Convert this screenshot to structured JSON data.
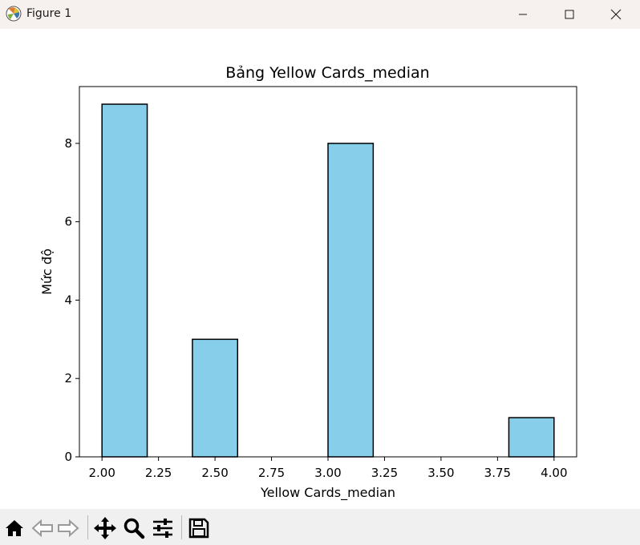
{
  "window": {
    "title": "Figure 1",
    "minimize_icon": "minimize-icon",
    "maximize_icon": "maximize-icon",
    "close_icon": "close-icon"
  },
  "toolbar": {
    "items": [
      "home-icon",
      "back-arrow-icon",
      "forward-arrow-icon",
      "pan-icon",
      "zoom-icon",
      "configure-subplots-icon",
      "save-icon"
    ]
  },
  "chart_data": {
    "type": "bar",
    "title": "Bảng Yellow Cards_median",
    "xlabel": "Yellow Cards_median",
    "ylabel": "Mức độ",
    "bin_edges": [
      2.0,
      2.2,
      2.4,
      2.6,
      2.8,
      3.0,
      3.2,
      3.4,
      3.6,
      3.8,
      4.0
    ],
    "values": [
      9,
      0,
      3,
      0,
      0,
      8,
      0,
      0,
      0,
      1
    ],
    "xlim": [
      1.9,
      4.1
    ],
    "ylim": [
      0,
      9.45
    ],
    "xticks": [
      2.0,
      2.25,
      2.5,
      2.75,
      3.0,
      3.25,
      3.5,
      3.75,
      4.0
    ],
    "xtick_labels": [
      "2.00",
      "2.25",
      "2.50",
      "2.75",
      "3.00",
      "3.25",
      "3.50",
      "3.75",
      "4.00"
    ],
    "yticks": [
      0,
      2,
      4,
      6,
      8
    ],
    "ytick_labels": [
      "0",
      "2",
      "4",
      "6",
      "8"
    ],
    "bar_color": "#87ceeb",
    "edge_color": "#000000",
    "grid": false,
    "legend": "none"
  }
}
